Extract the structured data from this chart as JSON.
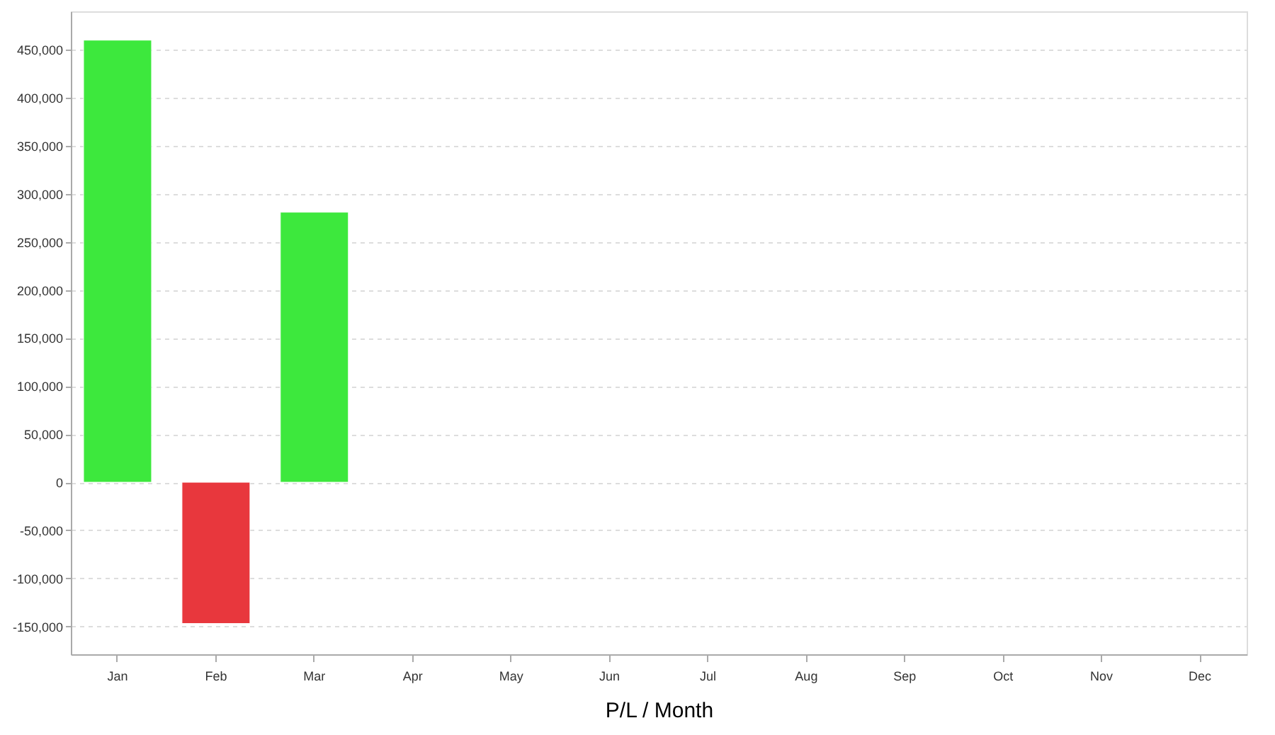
{
  "chart_data": {
    "type": "bar",
    "xlabel": "P/L / Month",
    "categories": [
      "Jan",
      "Feb",
      "Mar",
      "Apr",
      "May",
      "Jun",
      "Jul",
      "Aug",
      "Sep",
      "Oct",
      "Nov",
      "Dec"
    ],
    "values": [
      460000,
      -147000,
      281000,
      null,
      null,
      null,
      null,
      null,
      null,
      null,
      null,
      null
    ],
    "colors": [
      "#3de83d",
      "#e8373d",
      "#3de83d",
      null,
      null,
      null,
      null,
      null,
      null,
      null,
      null,
      null
    ],
    "ylim": [
      -179000,
      490000
    ],
    "yticks": [
      {
        "value": -150000,
        "label": "-150,000"
      },
      {
        "value": -100000,
        "label": "-100,000"
      },
      {
        "value": -50000,
        "label": "-50,000"
      },
      0,
      {
        "value": 50000,
        "label": "50,000"
      },
      {
        "value": 100000,
        "label": "100,000"
      },
      {
        "value": 150000,
        "label": "150,000"
      },
      {
        "value": 200000,
        "label": "200,000"
      },
      {
        "value": 250000,
        "label": "250,000"
      },
      {
        "value": 300000,
        "label": "300,000"
      },
      {
        "value": 350000,
        "label": "350,000"
      },
      {
        "value": 400000,
        "label": "400,000"
      },
      {
        "value": 450000,
        "label": "450,000"
      }
    ],
    "grid": "y",
    "legend": false
  }
}
